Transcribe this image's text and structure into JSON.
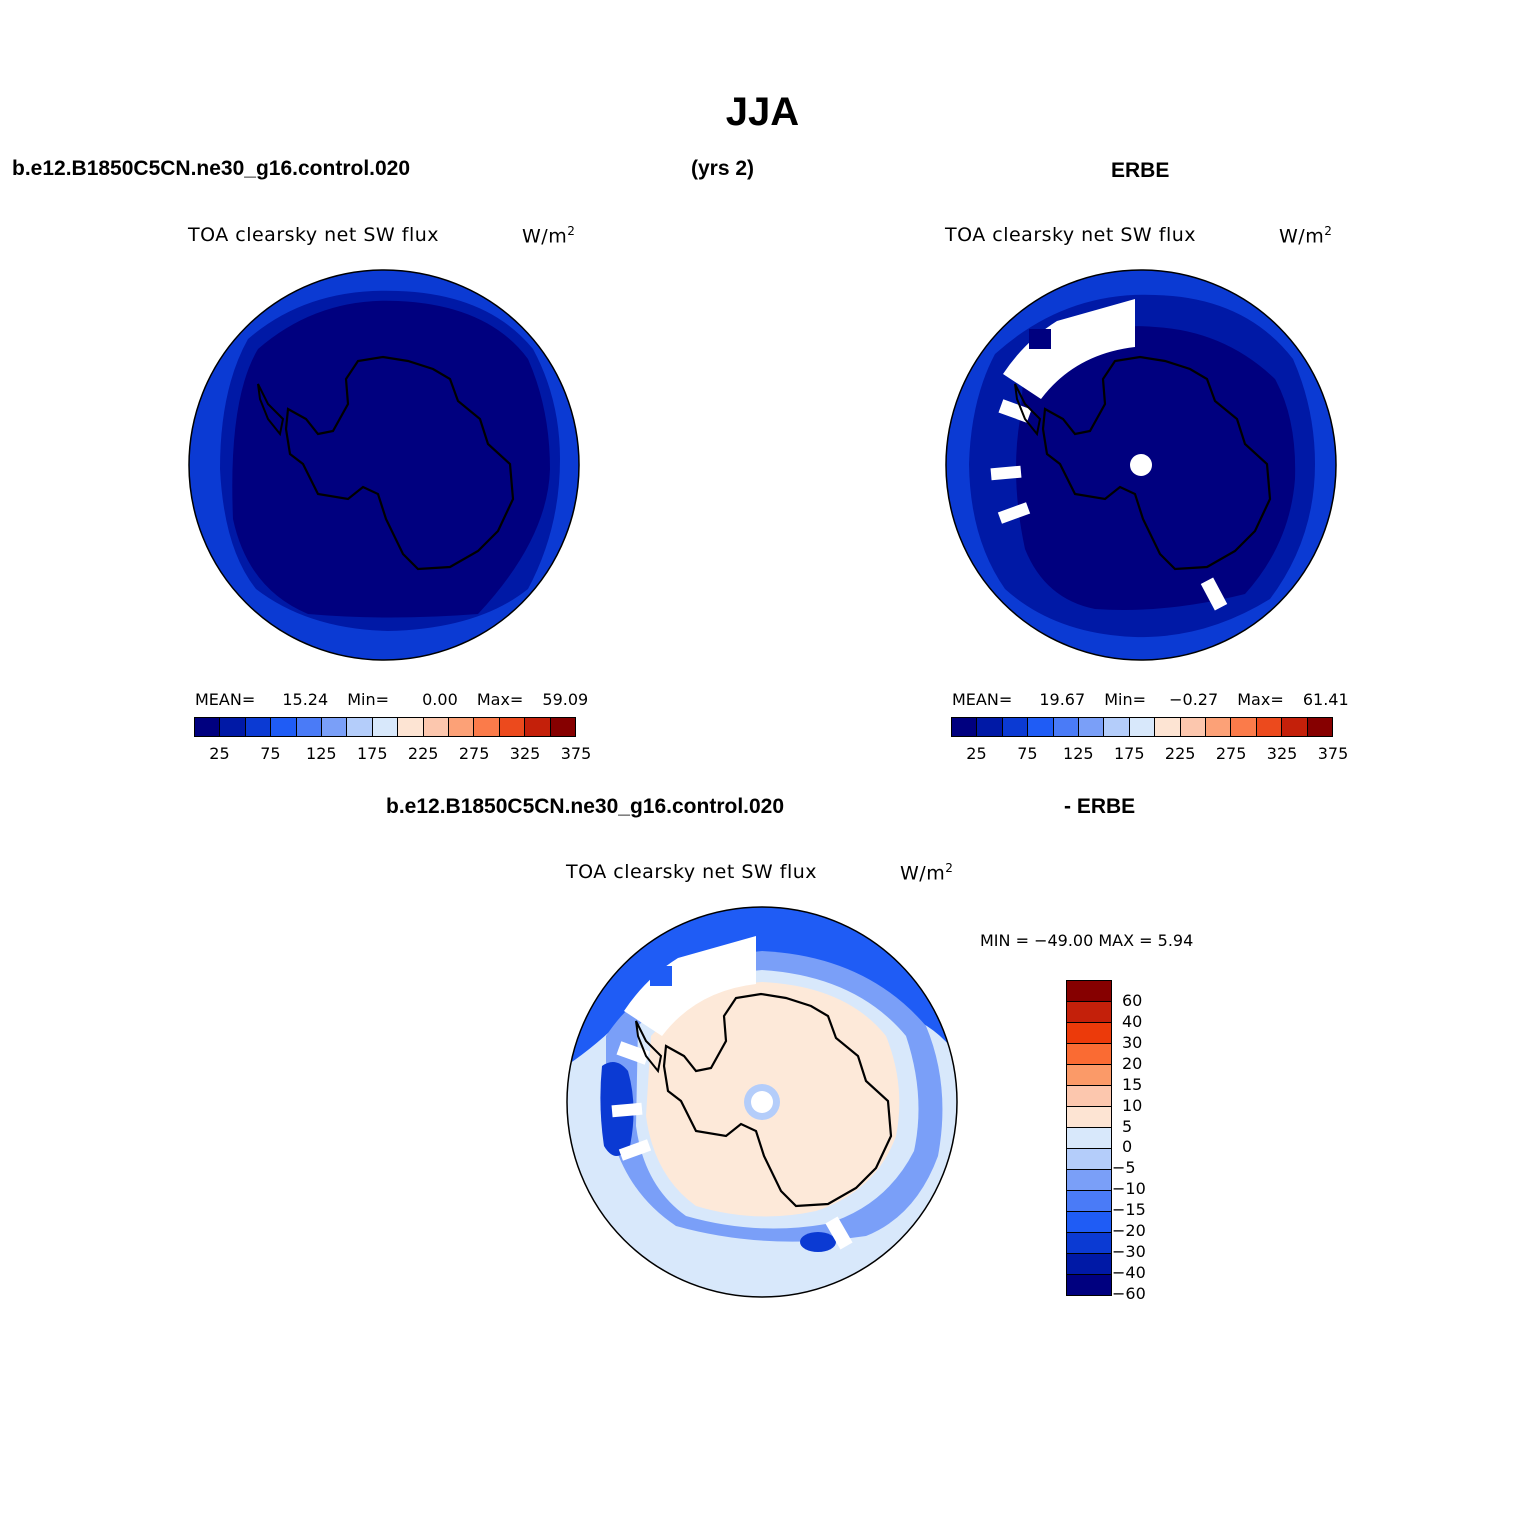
{
  "title": "JJA",
  "header": {
    "case_name": "b.e12.B1850C5CN.ne30_g16.control.020",
    "years": "(yrs 2)",
    "obs_name": "ERBE"
  },
  "panels": {
    "model": {
      "variable": "TOA clearsky net SW flux",
      "units_base": "W/m",
      "units_sup": "2",
      "mean_label": "MEAN=",
      "mean_value": "15.24",
      "min_label": "Min=",
      "min_value": "0.00",
      "max_label": "Max=",
      "max_value": "59.09"
    },
    "obs": {
      "variable": "TOA clearsky net SW flux",
      "units_base": "W/m",
      "units_sup": "2",
      "mean_label": "MEAN=",
      "mean_value": "19.67",
      "min_label": "Min=",
      "min_value": "−0.27",
      "max_label": "Max=",
      "max_value": "61.41"
    },
    "diff": {
      "case_name": "b.e12.B1850C5CN.ne30_g16.control.020",
      "obs_name": "- ERBE",
      "variable": "TOA clearsky net SW flux",
      "units_base": "W/m",
      "units_sup": "2",
      "minmax_text": "MIN = −49.00 MAX =    5.94"
    }
  },
  "colorbar_abs": {
    "colors": [
      "#00007f",
      "#0019a6",
      "#0b3ad3",
      "#1f5cf5",
      "#4a7bf7",
      "#7a9ff8",
      "#b4cdfa",
      "#d8e8fb",
      "#fde4d3",
      "#fcc7ae",
      "#fca177",
      "#fb7b4a",
      "#ec4a1d",
      "#c4200a",
      "#860000"
    ],
    "ticks": [
      "25",
      "75",
      "125",
      "175",
      "225",
      "275",
      "325",
      "375"
    ]
  },
  "colorbar_diff": {
    "colors": [
      "#860000",
      "#c4200a",
      "#ec3a0a",
      "#fa6b33",
      "#fb9a68",
      "#fcc7ae",
      "#fde4d3",
      "#d8e8fb",
      "#b4cdfa",
      "#7a9ff8",
      "#4a7bf7",
      "#1f5cf5",
      "#0b3ad3",
      "#0019a6",
      "#00007f"
    ],
    "ticks": [
      "60",
      "40",
      "30",
      "20",
      "15",
      "10",
      "5",
      "0",
      "−5",
      "−10",
      "−15",
      "−20",
      "−30",
      "−40",
      "−60"
    ]
  },
  "map_colors": {
    "land_dark": "#00007f",
    "ocean_band": "#0019a6",
    "outer_band": "#0b3ad3",
    "diff_land": "#fde9d9",
    "diff_light": "#d8e8fb",
    "diff_mid": "#7a9ff8",
    "diff_strong": "#1f5cf5",
    "missing": "#ffffff"
  }
}
